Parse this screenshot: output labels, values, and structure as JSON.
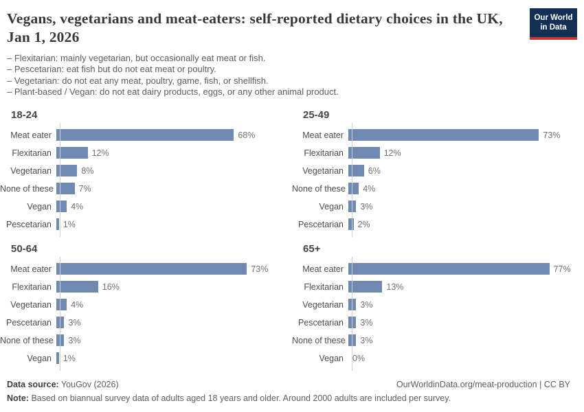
{
  "header": {
    "title": "Vegans, vegetarians and meat-eaters: self-reported dietary choices in the UK, Jan 1, 2026",
    "definitions": [
      "– Flexitarian: mainly vegetarian, but occasionally eat meat or fish.",
      "– Pescetarian: eat fish but do not eat meat or poultry.",
      "– Vegetarian: do not eat any meat, poultry, game, fish, or shellfish.",
      "– Plant-based / Vegan: do not eat dairy products, eggs, or any other animal product."
    ],
    "logo": {
      "line1": "Our World",
      "line2": "in Data"
    }
  },
  "colors": {
    "bar": "#6f89b0",
    "axis": "#cfcfcf",
    "logo_background": "#132f53",
    "logo_accent": "#c43a33"
  },
  "chart_data": [
    {
      "type": "bar",
      "title": "18-24",
      "categories": [
        "Meat eater",
        "Flexitarian",
        "Vegetarian",
        "None of these",
        "Vegan",
        "Pescetarian"
      ],
      "values": [
        68,
        12,
        8,
        7,
        4,
        1
      ],
      "unit": "%",
      "xlim": [
        0,
        80
      ],
      "orientation": "horizontal",
      "grid": false,
      "legend": false
    },
    {
      "type": "bar",
      "title": "25-49",
      "categories": [
        "Meat eater",
        "Flexitarian",
        "Vegetarian",
        "None of these",
        "Vegan",
        "Pescetarian"
      ],
      "values": [
        73,
        12,
        6,
        4,
        3,
        2
      ],
      "unit": "%",
      "xlim": [
        0,
        80
      ],
      "orientation": "horizontal",
      "grid": false,
      "legend": false
    },
    {
      "type": "bar",
      "title": "50-64",
      "categories": [
        "Meat eater",
        "Flexitarian",
        "Vegetarian",
        "Pescetarian",
        "None of these",
        "Vegan"
      ],
      "values": [
        73,
        16,
        4,
        3,
        3,
        1
      ],
      "unit": "%",
      "xlim": [
        0,
        80
      ],
      "orientation": "horizontal",
      "grid": false,
      "legend": false
    },
    {
      "type": "bar",
      "title": "65+",
      "categories": [
        "Meat eater",
        "Flexitarian",
        "Vegetarian",
        "Pescetarian",
        "None of these",
        "Vegan"
      ],
      "values": [
        77,
        13,
        3,
        3,
        3,
        0
      ],
      "unit": "%",
      "xlim": [
        0,
        80
      ],
      "orientation": "horizontal",
      "grid": false,
      "legend": false
    }
  ],
  "footer": {
    "source_label": "Data source:",
    "source_value": "YouGov (2026)",
    "attribution": "OurWorldinData.org/meat-production | CC BY",
    "note_label": "Note:",
    "note_text": "Based on biannual survey data of adults aged 18 years and older. Around 2000 adults are included per survey."
  }
}
